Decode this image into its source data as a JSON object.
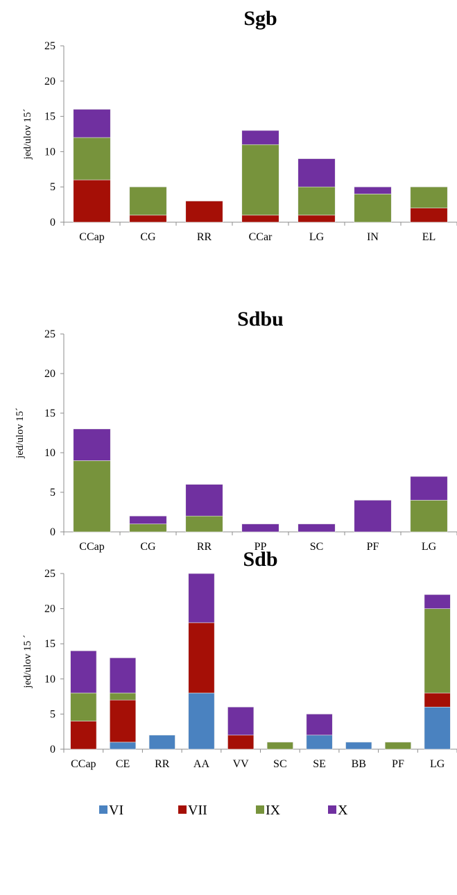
{
  "legend": {
    "series": [
      {
        "name": "VI",
        "color": "#4a82c0"
      },
      {
        "name": "VII",
        "color": "#a50f06"
      },
      {
        "name": "IX",
        "color": "#77933c"
      },
      {
        "name": "X",
        "color": "#7030a0"
      }
    ]
  },
  "chart_data": [
    {
      "type": "bar",
      "stacked": true,
      "title": "Sgb",
      "ylabel": "jed/ulov 15´",
      "ylim": [
        0,
        25
      ],
      "yticks": [
        0,
        5,
        10,
        15,
        20,
        25
      ],
      "categories": [
        "CCap",
        "CG",
        "RR",
        "CCar",
        "LG",
        "IN",
        "EL"
      ],
      "series": [
        {
          "name": "VI",
          "values": [
            0,
            0,
            0,
            0,
            0,
            0,
            0
          ]
        },
        {
          "name": "VII",
          "values": [
            6,
            1,
            3,
            1,
            1,
            0,
            2
          ]
        },
        {
          "name": "IX",
          "values": [
            6,
            4,
            0,
            10,
            4,
            4,
            3
          ]
        },
        {
          "name": "X",
          "values": [
            4,
            0,
            0,
            2,
            4,
            1,
            0
          ]
        }
      ]
    },
    {
      "type": "bar",
      "stacked": true,
      "title": "Sdbu",
      "ylabel": "jed/ulov 15´",
      "ylim": [
        0,
        25
      ],
      "yticks": [
        0,
        5,
        10,
        15,
        20,
        25
      ],
      "categories": [
        "CCap",
        "CG",
        "RR",
        "PP",
        "SC",
        "PF",
        "LG"
      ],
      "series": [
        {
          "name": "VI",
          "values": [
            0,
            0,
            0,
            0,
            0,
            0,
            0
          ]
        },
        {
          "name": "VII",
          "values": [
            0,
            0,
            0,
            0,
            0,
            0,
            0
          ]
        },
        {
          "name": "IX",
          "values": [
            9,
            1,
            2,
            0,
            0,
            0,
            4
          ]
        },
        {
          "name": "X",
          "values": [
            4,
            1,
            4,
            1,
            1,
            4,
            3
          ]
        }
      ]
    },
    {
      "type": "bar",
      "stacked": true,
      "title": "Sdb",
      "ylabel": "jed/ulov 15 ´",
      "ylim": [
        0,
        25
      ],
      "yticks": [
        0,
        5,
        10,
        15,
        20,
        25
      ],
      "categories": [
        "CCap",
        "CE",
        "RR",
        "AA",
        "VV",
        "SC",
        "SE",
        "BB",
        "PF",
        "LG"
      ],
      "series": [
        {
          "name": "VI",
          "values": [
            0,
            1,
            2,
            8,
            0,
            0,
            2,
            1,
            0,
            6
          ]
        },
        {
          "name": "VII",
          "values": [
            4,
            6,
            0,
            10,
            2,
            0,
            0,
            0,
            0,
            2
          ]
        },
        {
          "name": "IX",
          "values": [
            4,
            1,
            0,
            0,
            0,
            1,
            0,
            0,
            1,
            12
          ]
        },
        {
          "name": "X",
          "values": [
            6,
            5,
            0,
            7,
            4,
            0,
            3,
            0,
            0,
            2
          ]
        }
      ]
    }
  ]
}
